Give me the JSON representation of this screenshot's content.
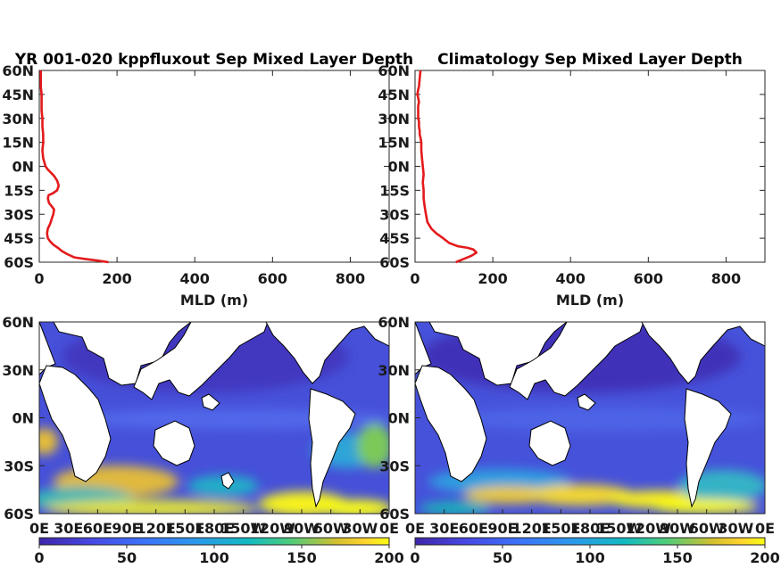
{
  "chart_data": [
    {
      "type": "line",
      "title": "YR 001-020 kppfluxout Sep Mixed Layer Depth",
      "xlabel": "MLD (m)",
      "ylabel": "",
      "xlim": [
        0,
        900
      ],
      "ylim": [
        -60,
        60
      ],
      "xticks": [
        "0",
        "200",
        "400",
        "600",
        "800"
      ],
      "yticks": [
        "60N",
        "45N",
        "30N",
        "15N",
        "0N",
        "15S",
        "30S",
        "45S",
        "60S"
      ],
      "grid": false,
      "series": [
        {
          "color": "#e41a1c",
          "x": [
            178,
            150,
            118,
            90,
            72,
            58,
            48,
            36,
            28,
            22,
            20,
            22,
            28,
            32,
            36,
            38,
            32,
            25,
            22,
            24,
            34,
            46,
            50,
            46,
            38,
            30,
            22,
            16,
            10,
            8,
            10,
            10,
            8,
            8,
            6,
            6,
            6,
            4,
            4
          ],
          "y": [
            -60,
            -59,
            -58,
            -57,
            -55,
            -53,
            -51,
            -49,
            -47,
            -45,
            -42,
            -39,
            -36,
            -33,
            -30,
            -27,
            -25,
            -23,
            -20,
            -18,
            -17,
            -15,
            -12,
            -9,
            -6,
            -4,
            -2,
            0,
            5,
            10,
            15,
            20,
            25,
            30,
            35,
            40,
            45,
            50,
            60
          ]
        }
      ]
    },
    {
      "type": "line",
      "title": "Climatology Sep Mixed Layer Depth",
      "xlabel": "MLD (m)",
      "ylabel": "",
      "xlim": [
        0,
        900
      ],
      "ylim": [
        -60,
        60
      ],
      "xticks": [
        "0",
        "200",
        "400",
        "600",
        "800"
      ],
      "yticks": [
        "60N",
        "45N",
        "30N",
        "15N",
        "0N",
        "15S",
        "30S",
        "45S",
        "60S"
      ],
      "grid": false,
      "series": [
        {
          "color": "#e41a1c",
          "x": [
            105,
            125,
            145,
            158,
            150,
            135,
            110,
            88,
            72,
            55,
            42,
            32,
            28,
            26,
            24,
            22,
            22,
            20,
            22,
            20,
            18,
            16,
            16,
            14,
            12,
            12,
            10,
            10,
            8,
            8,
            8,
            8,
            10,
            8,
            6,
            8,
            10,
            12,
            14
          ],
          "y": [
            -60,
            -58,
            -56,
            -54,
            -52,
            -51,
            -50,
            -48,
            -45,
            -42,
            -39,
            -35,
            -30,
            -27,
            -24,
            -20,
            -15,
            -10,
            -5,
            0,
            5,
            10,
            15,
            18,
            20,
            22,
            25,
            28,
            30,
            32,
            35,
            38,
            40,
            43,
            45,
            48,
            50,
            55,
            60
          ]
        }
      ]
    },
    {
      "type": "heatmap",
      "title": "",
      "xlabel": "",
      "ylabel": "",
      "xticks": [
        "0E",
        "30E",
        "60E",
        "90E",
        "120E",
        "150E",
        "180E",
        "150W",
        "120W",
        "90W",
        "60W",
        "30W",
        "0E"
      ],
      "yticks": [
        "60N",
        "30N",
        "0N",
        "30S",
        "60S"
      ],
      "colorbar": {
        "min": 0,
        "max": 200,
        "ticks": [
          "0",
          "50",
          "100",
          "150",
          "200"
        ]
      },
      "region_values": [
        {
          "lat": -58,
          "lon": 10,
          "value": 185
        },
        {
          "lat": -58,
          "lon": 90,
          "value": 175
        },
        {
          "lat": -55,
          "lon": 280,
          "value": 195
        },
        {
          "lat": -38,
          "lon": 30,
          "value": 140
        },
        {
          "lat": -42,
          "lon": 80,
          "value": 130
        },
        {
          "lat": -35,
          "lon": 350,
          "value": 120
        },
        {
          "lat": -30,
          "lon": 150,
          "value": 110
        },
        {
          "lat": 0,
          "lon": 200,
          "value": 50
        },
        {
          "lat": 40,
          "lon": 180,
          "value": 45
        }
      ]
    },
    {
      "type": "heatmap",
      "title": "",
      "xlabel": "",
      "ylabel": "",
      "xticks": [
        "0E",
        "30E",
        "60E",
        "90E",
        "120E",
        "150E",
        "180E",
        "150W",
        "120W",
        "90W",
        "60W",
        "30W",
        "0E"
      ],
      "yticks": [
        "60N",
        "30N",
        "0N",
        "30S",
        "60S"
      ],
      "colorbar": {
        "min": 0,
        "max": 200,
        "ticks": [
          "0",
          "50",
          "100",
          "150",
          "200"
        ]
      },
      "region_values": [
        {
          "lat": -50,
          "lon": 60,
          "value": 170
        },
        {
          "lat": -50,
          "lon": 100,
          "value": 185
        },
        {
          "lat": -52,
          "lon": 150,
          "value": 175
        },
        {
          "lat": -52,
          "lon": 200,
          "value": 180
        },
        {
          "lat": -54,
          "lon": 260,
          "value": 190
        },
        {
          "lat": -45,
          "lon": 30,
          "value": 110
        },
        {
          "lat": 0,
          "lon": 200,
          "value": 45
        },
        {
          "lat": 40,
          "lon": 180,
          "value": 35
        }
      ]
    }
  ]
}
